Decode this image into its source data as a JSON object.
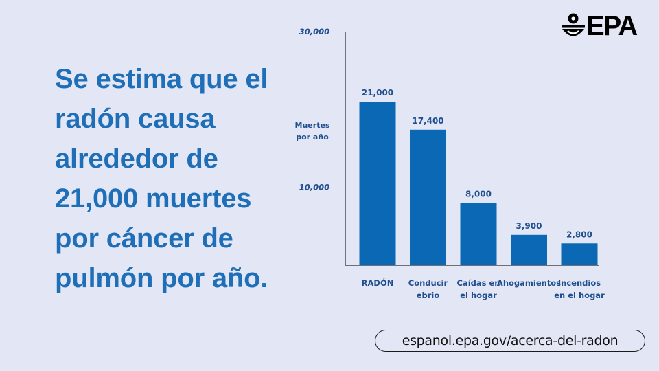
{
  "headline": "Se estima que el radón causa alrededor de 21,000 muertes por cáncer de pulmón por año.",
  "logo": {
    "text": "EPA",
    "icon": "epa-flower-icon"
  },
  "url": "espanol.epa.gov/acerca-del-radon",
  "colors": {
    "background": "#e3e6f4",
    "accent": "#1f6fb8",
    "bar": "#0a68b4",
    "axis_label": "#1f4f8f"
  },
  "chart_data": {
    "type": "bar",
    "title": "",
    "xlabel": "",
    "ylabel": "Muertes por año",
    "ylabel_lines": [
      "Muertes",
      "por año"
    ],
    "ylim": [
      0,
      30000
    ],
    "yticks": [
      10000,
      30000
    ],
    "ytick_labels": [
      "10,000",
      "30,000"
    ],
    "categories": [
      "RADÓN",
      "Conducir ebrio",
      "Caídas en el hogar",
      "Ahogamientos",
      "Incendios en el hogar"
    ],
    "category_lines": [
      [
        "RADÓN"
      ],
      [
        "Conducir",
        "ebrio"
      ],
      [
        "Caídas en",
        "el hogar"
      ],
      [
        "Ahogamientos"
      ],
      [
        "Incendios",
        "en el hogar"
      ]
    ],
    "values": [
      21000,
      17400,
      8000,
      3900,
      2800
    ],
    "value_labels": [
      "21,000",
      "17,400",
      "8,000",
      "3,900",
      "2,800"
    ],
    "grid": false,
    "legend": "none"
  }
}
